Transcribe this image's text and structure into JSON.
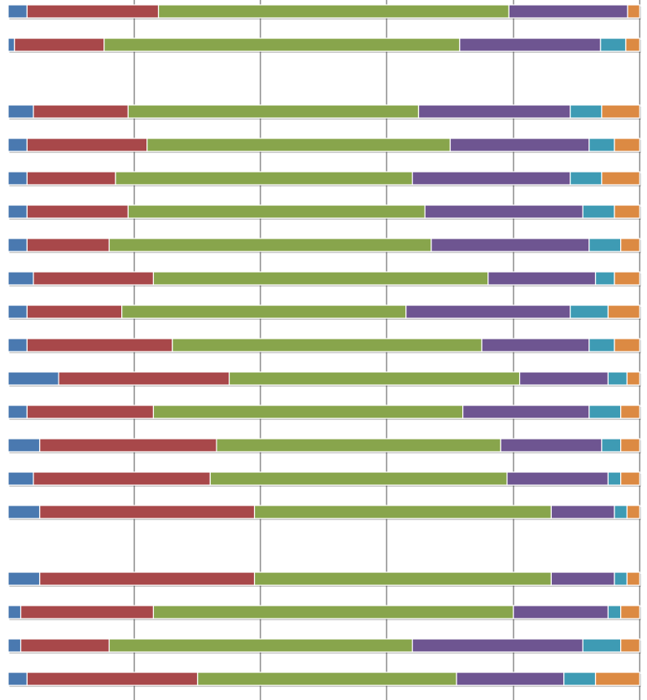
{
  "chart_data": {
    "type": "bar",
    "orientation": "horizontal",
    "stacked": "percent",
    "title": "",
    "xlabel": "",
    "ylabel": "",
    "xlim": [
      0,
      100
    ],
    "grid": true,
    "legend": "none",
    "colors": [
      "#4a79b0",
      "#a8484a",
      "#88a54c",
      "#6e5591",
      "#3e9bb4",
      "#dc8a43"
    ],
    "rows": [
      {
        "values": [
          3.0,
          20.8,
          55.5,
          18.8,
          0,
          1.9
        ]
      },
      {
        "values": [
          1.0,
          14.2,
          56.3,
          22.3,
          4.0,
          2.2
        ]
      },
      null,
      {
        "values": [
          4.0,
          15.0,
          46.0,
          24.0,
          5.0,
          6.0
        ]
      },
      {
        "values": [
          3.0,
          19.0,
          48.0,
          22.0,
          4.0,
          4.0
        ]
      },
      {
        "values": [
          3.0,
          14.0,
          47.0,
          25.0,
          5.0,
          6.0
        ]
      },
      {
        "values": [
          3.0,
          16.0,
          47.0,
          25.0,
          5.0,
          4.0
        ]
      },
      {
        "values": [
          3.0,
          13.0,
          51.0,
          25.0,
          5.0,
          3.0
        ]
      },
      {
        "values": [
          4.0,
          19.0,
          53.0,
          17.0,
          3.0,
          4.0
        ]
      },
      {
        "values": [
          3.0,
          15.0,
          45.0,
          26.0,
          6.0,
          5.0
        ]
      },
      {
        "values": [
          3.0,
          23.0,
          49.0,
          17.0,
          4.0,
          4.0
        ]
      },
      {
        "values": [
          8.0,
          27.0,
          46.0,
          14.0,
          3.0,
          2.0
        ]
      },
      {
        "values": [
          3.0,
          20.0,
          49.0,
          20.0,
          5.0,
          3.0
        ]
      },
      {
        "values": [
          5.0,
          28.0,
          45.0,
          16.0,
          3.0,
          3.0
        ]
      },
      {
        "values": [
          4.0,
          28.0,
          47.0,
          16.0,
          2.0,
          3.0
        ]
      },
      {
        "values": [
          5.0,
          34.0,
          47.0,
          10.0,
          2.0,
          2.0
        ]
      },
      null,
      {
        "values": [
          5.0,
          34.0,
          47.0,
          10.0,
          2.0,
          2.0
        ]
      },
      {
        "values": [
          2.0,
          21.0,
          57.0,
          15.0,
          2.0,
          3.0
        ]
      },
      {
        "values": [
          2.0,
          14.0,
          48.0,
          27.0,
          6.0,
          3.0
        ]
      },
      {
        "values": [
          3.0,
          27.0,
          41.0,
          17.0,
          5.0,
          7.0
        ]
      }
    ]
  }
}
